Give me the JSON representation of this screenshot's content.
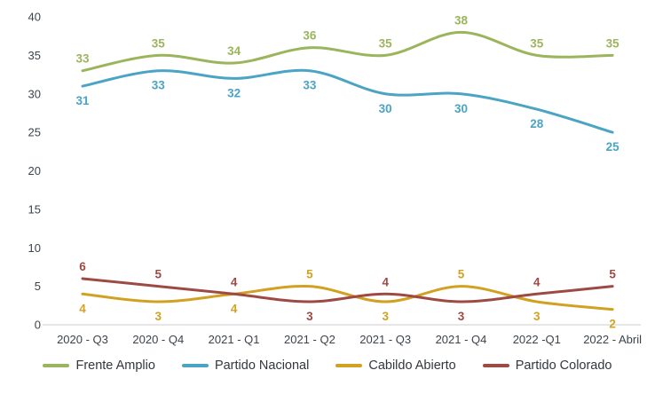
{
  "chart_data": {
    "type": "line",
    "title": "",
    "xlabel": "",
    "ylabel": "",
    "categories": [
      "2020 - Q3",
      "2020 - Q4",
      "2021 - Q1",
      "2021 - Q2",
      "2021 - Q3",
      "2021 - Q4",
      "2022 -Q1",
      "2022 - Abril"
    ],
    "series": [
      {
        "name": "Frente Amplio",
        "color": "#9bb55c",
        "values": [
          33,
          35,
          34,
          36,
          35,
          38,
          35,
          35
        ],
        "label_sides": [
          "above",
          "above",
          "above",
          "above",
          "above",
          "above",
          "above",
          "above"
        ]
      },
      {
        "name": "Partido Nacional",
        "color": "#4ba4c3",
        "values": [
          31,
          33,
          32,
          33,
          30,
          30,
          28,
          25
        ],
        "label_sides": [
          "below",
          "below",
          "below",
          "below",
          "below",
          "below",
          "below",
          "below"
        ]
      },
      {
        "name": "Cabildo Abierto",
        "color": "#d2a121",
        "values": [
          4,
          3,
          4,
          5,
          3,
          5,
          3,
          2
        ],
        "label_sides": [
          "below",
          "below",
          "below",
          "above",
          "below",
          "above",
          "below",
          "below"
        ]
      },
      {
        "name": "Partido Colorado",
        "color": "#9e4a44",
        "values": [
          6,
          5,
          4,
          3,
          4,
          3,
          4,
          5
        ],
        "label_sides": [
          "above",
          "above",
          "above",
          "below",
          "above",
          "below",
          "above",
          "above"
        ]
      }
    ],
    "ylim": [
      0,
      40
    ],
    "yticks": [
      0,
      5,
      10,
      15,
      20,
      25,
      30,
      35,
      40
    ],
    "grid": false,
    "show_data_labels": true,
    "legend_position": "bottom",
    "colors": {
      "axis_line": "#cccccc",
      "tick_text": "#3c434b",
      "legend_text": "#33373c"
    }
  }
}
